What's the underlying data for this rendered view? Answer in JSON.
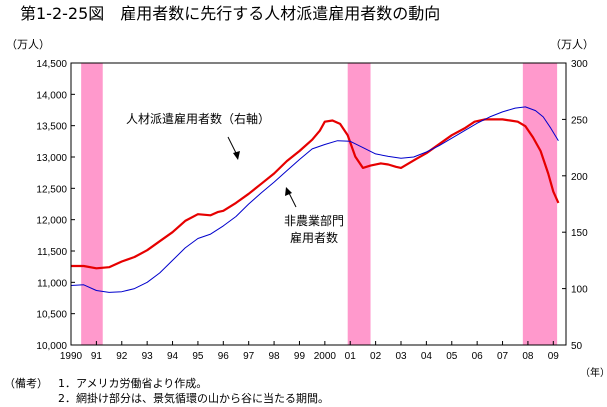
{
  "title": "第1-2-25図　雇用者数に先行する人材派遣雇用者数の動向",
  "chart_data": {
    "type": "line",
    "title": "第1-2-25図　雇用者数に先行する人材派遣雇用者数の動向",
    "left_axis": {
      "unit": "（万人）",
      "range": [
        10000,
        14500
      ],
      "ticks": [
        "14,500",
        "14,000",
        "13,500",
        "13,000",
        "12,500",
        "12,000",
        "11,500",
        "11,000",
        "10,500",
        "10,000"
      ],
      "tick_values": [
        14500,
        14000,
        13500,
        13000,
        12500,
        12000,
        11500,
        11000,
        10500,
        10000
      ]
    },
    "right_axis": {
      "unit": "（万人）",
      "range": [
        50,
        300
      ],
      "ticks": [
        "300",
        "250",
        "200",
        "150",
        "100",
        "50"
      ],
      "tick_values": [
        300,
        250,
        200,
        150,
        100,
        50
      ]
    },
    "x_axis": {
      "unit": "（年）",
      "range": [
        1990,
        2009.5
      ],
      "ticks": [
        "1990",
        "91",
        "92",
        "93",
        "94",
        "95",
        "96",
        "97",
        "98",
        "99",
        "2000",
        "01",
        "02",
        "03",
        "04",
        "05",
        "06",
        "07",
        "08",
        "09"
      ],
      "tick_values": [
        1990,
        1991,
        1992,
        1993,
        1994,
        1995,
        1996,
        1997,
        1998,
        1999,
        2000,
        2001,
        2002,
        2003,
        2004,
        2005,
        2006,
        2007,
        2008,
        2009
      ]
    },
    "recessions": [
      [
        1990.4,
        1991.25
      ],
      [
        2000.9,
        2001.8
      ],
      [
        2007.8,
        2009.15
      ]
    ],
    "recession_color": "#ff99cc",
    "series": [
      {
        "name": "人材派遣雇用者数（右軸）",
        "axis": "right",
        "color": "#e60000",
        "points": [
          [
            1990.0,
            120
          ],
          [
            1990.5,
            120
          ],
          [
            1991.0,
            118
          ],
          [
            1991.5,
            119
          ],
          [
            1992.0,
            124
          ],
          [
            1992.5,
            128
          ],
          [
            1993.0,
            134
          ],
          [
            1993.5,
            142
          ],
          [
            1994.0,
            150
          ],
          [
            1994.5,
            160
          ],
          [
            1995.0,
            166
          ],
          [
            1995.5,
            165
          ],
          [
            1995.8,
            168
          ],
          [
            1996.0,
            169
          ],
          [
            1996.5,
            176
          ],
          [
            1997.0,
            184
          ],
          [
            1997.5,
            193
          ],
          [
            1998.0,
            202
          ],
          [
            1998.5,
            213
          ],
          [
            1999.0,
            222
          ],
          [
            1999.5,
            232
          ],
          [
            1999.8,
            240
          ],
          [
            2000.0,
            248
          ],
          [
            2000.3,
            249
          ],
          [
            2000.6,
            246
          ],
          [
            2000.9,
            236
          ],
          [
            2001.2,
            217
          ],
          [
            2001.5,
            207
          ],
          [
            2001.8,
            209
          ],
          [
            2002.2,
            211
          ],
          [
            2002.5,
            210
          ],
          [
            2002.8,
            208
          ],
          [
            2003.0,
            207
          ],
          [
            2003.3,
            211
          ],
          [
            2003.6,
            215
          ],
          [
            2004.0,
            220
          ],
          [
            2004.5,
            228
          ],
          [
            2005.0,
            236
          ],
          [
            2005.5,
            242
          ],
          [
            2005.9,
            248
          ],
          [
            2006.3,
            250
          ],
          [
            2006.7,
            250
          ],
          [
            2007.0,
            250
          ],
          [
            2007.3,
            249
          ],
          [
            2007.6,
            248
          ],
          [
            2007.9,
            244
          ],
          [
            2008.2,
            234
          ],
          [
            2008.5,
            222
          ],
          [
            2008.8,
            202
          ],
          [
            2009.0,
            186
          ],
          [
            2009.2,
            176
          ]
        ]
      },
      {
        "name": "非農業部門雇用者数",
        "axis": "left",
        "color": "#0000cc",
        "points": [
          [
            1990.0,
            10950
          ],
          [
            1990.5,
            10960
          ],
          [
            1991.0,
            10870
          ],
          [
            1991.5,
            10840
          ],
          [
            1992.0,
            10850
          ],
          [
            1992.5,
            10900
          ],
          [
            1993.0,
            11000
          ],
          [
            1993.5,
            11150
          ],
          [
            1994.0,
            11350
          ],
          [
            1994.5,
            11550
          ],
          [
            1995.0,
            11700
          ],
          [
            1995.5,
            11770
          ],
          [
            1996.0,
            11900
          ],
          [
            1996.5,
            12050
          ],
          [
            1997.0,
            12250
          ],
          [
            1997.5,
            12430
          ],
          [
            1998.0,
            12600
          ],
          [
            1998.5,
            12780
          ],
          [
            1999.0,
            12960
          ],
          [
            1999.5,
            13130
          ],
          [
            2000.0,
            13200
          ],
          [
            2000.5,
            13260
          ],
          [
            2001.0,
            13250
          ],
          [
            2001.5,
            13150
          ],
          [
            2002.0,
            13050
          ],
          [
            2002.5,
            13010
          ],
          [
            2003.0,
            12980
          ],
          [
            2003.5,
            13000
          ],
          [
            2004.0,
            13080
          ],
          [
            2004.5,
            13180
          ],
          [
            2005.0,
            13300
          ],
          [
            2005.5,
            13420
          ],
          [
            2006.0,
            13540
          ],
          [
            2006.5,
            13640
          ],
          [
            2007.0,
            13720
          ],
          [
            2007.5,
            13780
          ],
          [
            2007.9,
            13800
          ],
          [
            2008.3,
            13740
          ],
          [
            2008.6,
            13640
          ],
          [
            2008.9,
            13460
          ],
          [
            2009.2,
            13260
          ]
        ]
      }
    ],
    "annotations": [
      {
        "text": "人材派遣雇用者数（右軸）",
        "arrow_to": [
          1997.0,
          184
        ]
      },
      {
        "text": "非農業部門",
        "arrow_to": [
          1999.2,
          12840
        ]
      },
      {
        "text": "雇用者数"
      }
    ]
  },
  "notes": {
    "label": "（備考）",
    "items": [
      "1．アメリカ労働省より作成。",
      "2．網掛け部分は、景気循環の山から谷に当たる期間。"
    ]
  }
}
